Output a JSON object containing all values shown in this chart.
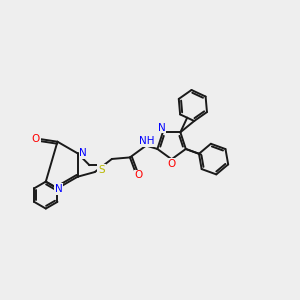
{
  "bg_color": "#eeeeee",
  "bond_color": "#1a1a1a",
  "bond_width": 1.4,
  "colors": {
    "C": "#1a1a1a",
    "N": "#0000ff",
    "O": "#ff0000",
    "S": "#b8b800",
    "H": "#3a8a8a"
  },
  "figsize": [
    3.0,
    3.0
  ],
  "dpi": 100
}
